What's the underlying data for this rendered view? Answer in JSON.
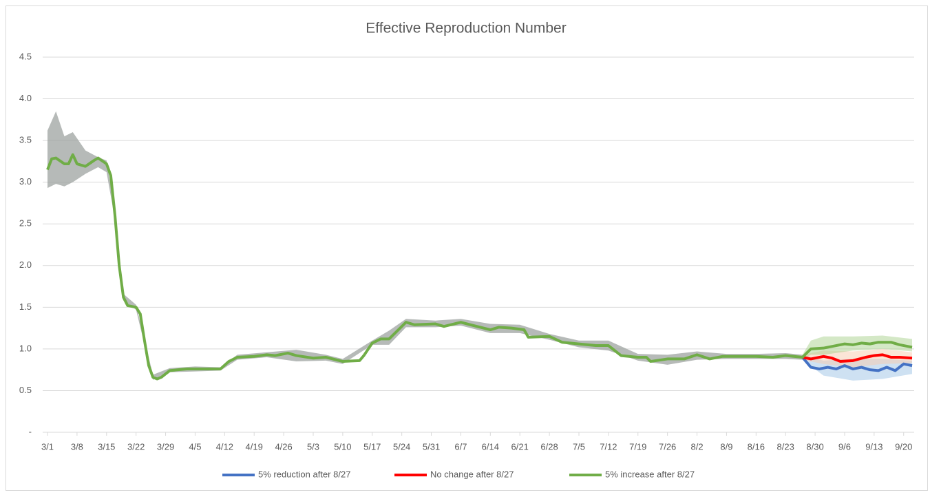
{
  "chart_data": {
    "type": "line",
    "title": "Effective Reproduction Number",
    "xlim": [
      "3/1",
      "9/22"
    ],
    "xticks": [
      "3/1",
      "3/8",
      "3/15",
      "3/22",
      "3/29",
      "4/5",
      "4/12",
      "4/19",
      "4/26",
      "5/3",
      "5/10",
      "5/17",
      "5/24",
      "5/31",
      "6/7",
      "6/14",
      "6/21",
      "6/28",
      "7/5",
      "7/12",
      "7/19",
      "7/26",
      "8/2",
      "8/9",
      "8/16",
      "8/23",
      "8/30",
      "9/6",
      "9/13",
      "9/20"
    ],
    "ylim": [
      0,
      4.5
    ],
    "yticks": [
      {
        "value": 0,
        "label": "-"
      },
      0.5,
      {
        "value": 1,
        "label": "1.0"
      },
      1.5,
      {
        "value": 2,
        "label": "2.0"
      },
      2.5,
      {
        "value": 3,
        "label": "3.0"
      },
      3.5,
      {
        "value": 4,
        "label": "4.0"
      },
      4.5
    ],
    "grid": true,
    "legend": "bottom",
    "band": {
      "color": "#9ea3a0",
      "x": [
        "3/1",
        "3/3",
        "3/5",
        "3/7",
        "3/10",
        "3/13",
        "3/15",
        "3/17",
        "3/19",
        "3/22",
        "3/26",
        "3/30",
        "4/5",
        "4/11",
        "4/15",
        "4/22",
        "4/29",
        "5/6",
        "5/10",
        "5/17",
        "5/21",
        "5/25",
        "6/1",
        "6/7",
        "6/14",
        "6/21",
        "6/28",
        "7/5",
        "7/12",
        "7/19",
        "7/26",
        "8/2",
        "8/9",
        "8/16",
        "8/23",
        "8/27"
      ],
      "lower": [
        2.93,
        2.98,
        2.95,
        3.0,
        3.1,
        3.18,
        3.12,
        2.55,
        1.58,
        1.47,
        0.63,
        0.72,
        0.73,
        0.74,
        0.87,
        0.9,
        0.85,
        0.86,
        0.82,
        1.05,
        1.05,
        1.26,
        1.26,
        1.28,
        1.19,
        1.19,
        1.11,
        1.02,
        0.98,
        0.86,
        0.81,
        0.87,
        0.88,
        0.88,
        0.88,
        0.87
      ],
      "upper": [
        3.62,
        3.85,
        3.55,
        3.6,
        3.38,
        3.3,
        3.26,
        2.65,
        1.66,
        1.53,
        0.69,
        0.77,
        0.79,
        0.78,
        0.93,
        0.96,
        0.99,
        0.93,
        0.88,
        1.1,
        1.22,
        1.36,
        1.34,
        1.36,
        1.3,
        1.29,
        1.18,
        1.1,
        1.1,
        0.94,
        0.93,
        0.97,
        0.94,
        0.94,
        0.95,
        0.93
      ]
    },
    "series": [
      {
        "name": "5% reduction after 8/27",
        "color": "#4472c4",
        "x": [
          "8/27",
          "8/29",
          "8/31",
          "9/2",
          "9/4",
          "9/6",
          "9/8",
          "9/10",
          "9/12",
          "9/14",
          "9/16",
          "9/18",
          "9/20",
          "9/22"
        ],
        "values": [
          0.9,
          0.78,
          0.76,
          0.78,
          0.76,
          0.8,
          0.76,
          0.78,
          0.75,
          0.74,
          0.78,
          0.74,
          0.82,
          0.8
        ],
        "band": {
          "color": "#9dc3e6",
          "x": [
            "8/27",
            "9/1",
            "9/8",
            "9/15",
            "9/22"
          ],
          "lower": [
            0.87,
            0.68,
            0.62,
            0.64,
            0.7
          ],
          "upper": [
            0.93,
            0.86,
            0.88,
            0.88,
            0.86
          ]
        }
      },
      {
        "name": "No change after 8/27",
        "color": "#ff0000",
        "x": [
          "8/27",
          "8/29",
          "9/1",
          "9/3",
          "9/5",
          "9/8",
          "9/11",
          "9/13",
          "9/15",
          "9/17",
          "9/19",
          "9/22"
        ],
        "values": [
          0.9,
          0.88,
          0.91,
          0.89,
          0.85,
          0.86,
          0.9,
          0.92,
          0.93,
          0.9,
          0.9,
          0.89
        ],
        "band": {
          "color": "#f8cbad",
          "x": [
            "8/27",
            "9/1",
            "9/8",
            "9/15",
            "9/22"
          ],
          "lower": [
            0.87,
            0.82,
            0.78,
            0.82,
            0.83
          ],
          "upper": [
            0.93,
            0.98,
            0.97,
            1.0,
            0.96
          ]
        }
      },
      {
        "name": "5% increase after 8/27",
        "color": "#70ad47",
        "x": [
          "3/1",
          "3/2",
          "3/3",
          "3/5",
          "3/6",
          "3/7",
          "3/8",
          "3/10",
          "3/12",
          "3/13",
          "3/15",
          "3/16",
          "3/17",
          "3/18",
          "3/19",
          "3/20",
          "3/22",
          "3/23",
          "3/24",
          "3/25",
          "3/26",
          "3/27",
          "3/28",
          "3/29",
          "3/30",
          "4/1",
          "4/3",
          "4/5",
          "4/8",
          "4/11",
          "4/13",
          "4/15",
          "4/19",
          "4/22",
          "4/24",
          "4/27",
          "4/29",
          "5/3",
          "5/6",
          "5/10",
          "5/14",
          "5/15",
          "5/17",
          "5/19",
          "5/21",
          "5/23",
          "5/25",
          "5/27",
          "6/1",
          "6/3",
          "6/7",
          "6/10",
          "6/14",
          "6/16",
          "6/19",
          "6/22",
          "6/23",
          "6/28",
          "7/1",
          "7/5",
          "7/9",
          "7/12",
          "7/15",
          "7/19",
          "7/21",
          "7/22",
          "7/26",
          "7/30",
          "8/2",
          "8/5",
          "8/8",
          "8/12",
          "8/16",
          "8/20",
          "8/23",
          "8/27",
          "8/29",
          "9/1",
          "9/4",
          "9/6",
          "9/8",
          "9/10",
          "9/12",
          "9/14",
          "9/17",
          "9/19",
          "9/22"
        ],
        "values": [
          3.15,
          3.28,
          3.29,
          3.22,
          3.22,
          3.33,
          3.22,
          3.19,
          3.26,
          3.29,
          3.22,
          3.08,
          2.6,
          2.0,
          1.62,
          1.52,
          1.5,
          1.42,
          1.1,
          0.8,
          0.66,
          0.64,
          0.66,
          0.7,
          0.74,
          0.75,
          0.76,
          0.76,
          0.76,
          0.76,
          0.85,
          0.9,
          0.91,
          0.93,
          0.92,
          0.95,
          0.92,
          0.89,
          0.9,
          0.85,
          0.86,
          0.92,
          1.07,
          1.12,
          1.12,
          1.22,
          1.32,
          1.29,
          1.3,
          1.27,
          1.32,
          1.28,
          1.23,
          1.26,
          1.25,
          1.23,
          1.14,
          1.15,
          1.08,
          1.06,
          1.04,
          1.04,
          0.92,
          0.9,
          0.9,
          0.85,
          0.88,
          0.88,
          0.93,
          0.88,
          0.91,
          0.91,
          0.91,
          0.9,
          0.92,
          0.9,
          1.0,
          1.01,
          1.04,
          1.06,
          1.05,
          1.07,
          1.06,
          1.08,
          1.08,
          1.05,
          1.02
        ],
        "band": {
          "color": "#a9d18e",
          "x": [
            "8/27",
            "8/29",
            "9/1",
            "9/8",
            "9/15",
            "9/22"
          ],
          "lower": [
            0.87,
            0.93,
            0.93,
            0.98,
            1.0,
            0.97
          ],
          "upper": [
            0.93,
            1.1,
            1.15,
            1.15,
            1.16,
            1.12
          ]
        }
      }
    ]
  }
}
